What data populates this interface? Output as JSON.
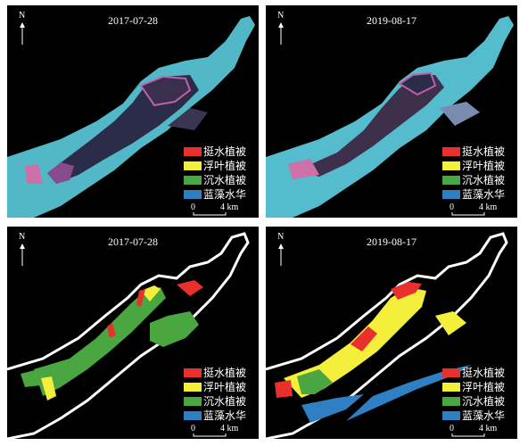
{
  "north_label": "N",
  "panels": [
    {
      "date": "2017-07-28",
      "kind": "image"
    },
    {
      "date": "2019-08-17",
      "kind": "image"
    },
    {
      "date": "2017-07-28",
      "kind": "classified"
    },
    {
      "date": "2019-08-17",
      "kind": "classified"
    }
  ],
  "legend": [
    {
      "label": "挺水植被",
      "color": "#e8312c"
    },
    {
      "label": "浮叶植被",
      "color": "#f4ef3a"
    },
    {
      "label": "沉水植被",
      "color": "#4aa640"
    },
    {
      "label": "蓝藻水华",
      "color": "#2f7fc4"
    }
  ],
  "scale_bar": {
    "start": "0",
    "end": "4 km"
  },
  "colors": {
    "water": "#52b8c8",
    "shore": "#ffffff",
    "background": "#000000",
    "marsh": "#d070a8"
  }
}
